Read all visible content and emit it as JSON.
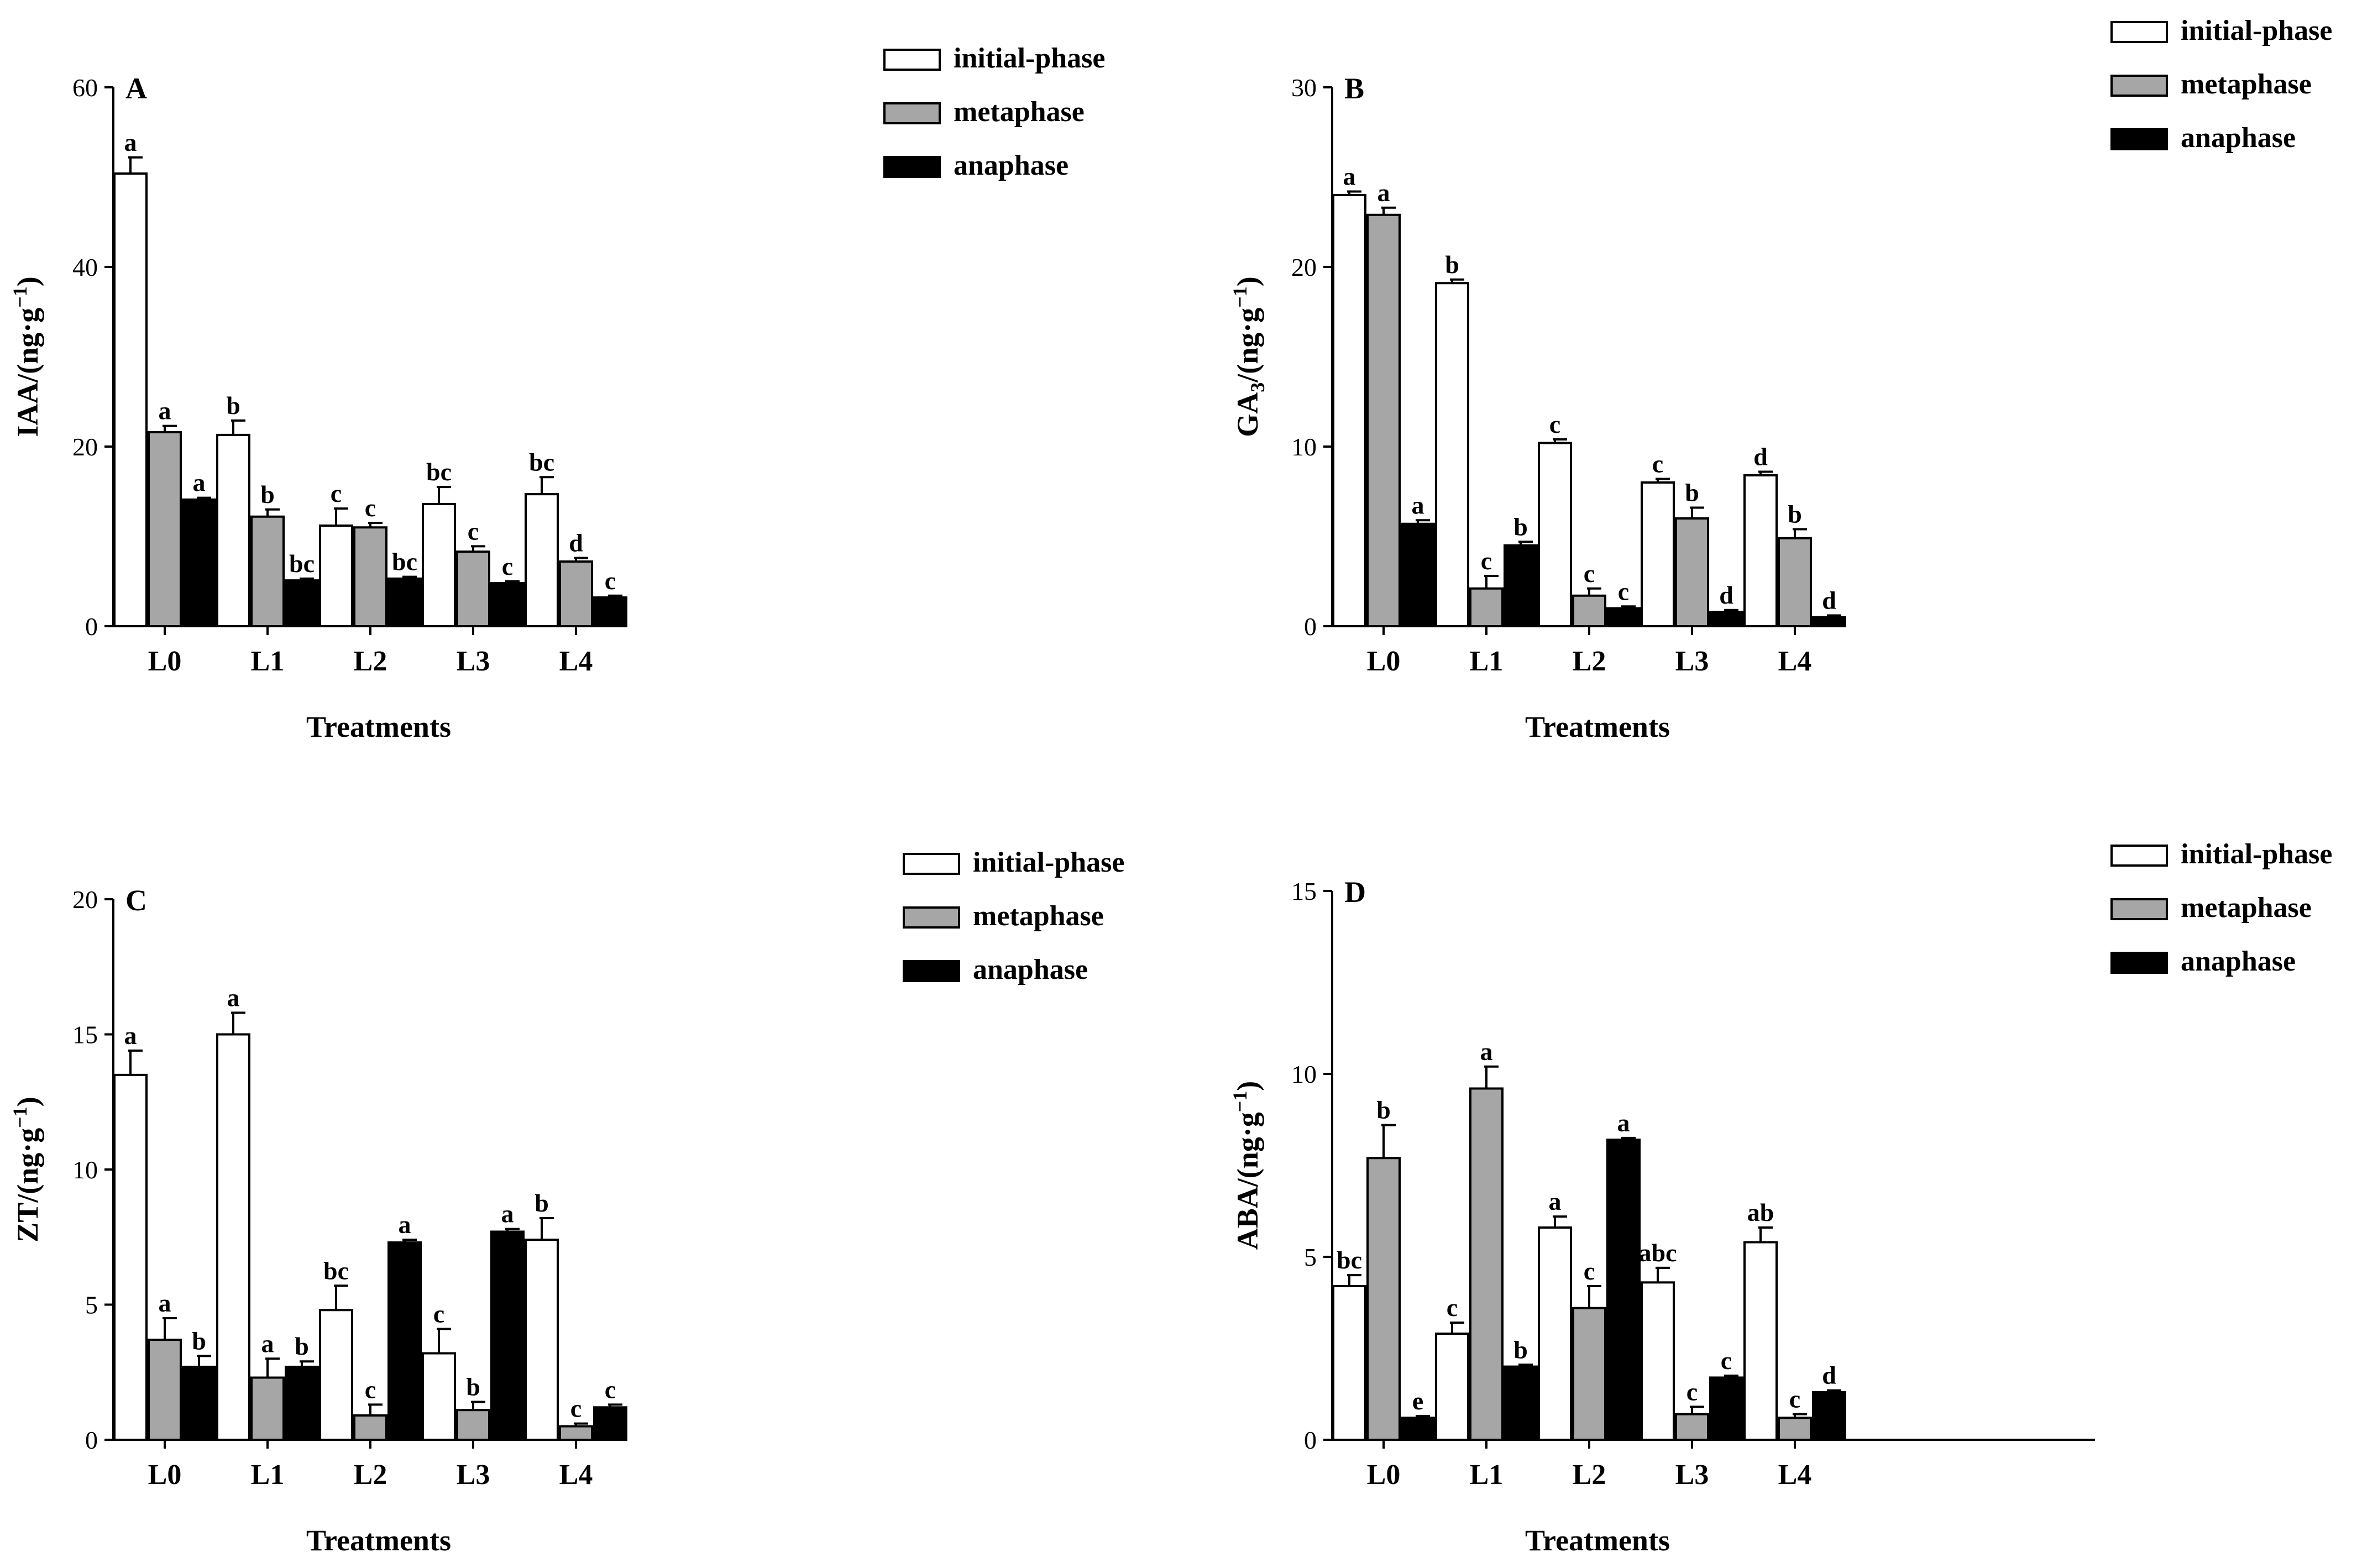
{
  "chart_data": [
    {
      "type": "bar",
      "panel": "A",
      "ylabel_main": "IAA/(ng·g",
      "ylabel_sup": "−1",
      "ylabel_sub": "",
      "ylabel_end": ")",
      "xlabel": "Treatments",
      "ylim": [
        0,
        60
      ],
      "yticks": [
        0,
        20,
        40,
        60
      ],
      "categories": [
        "L0",
        "L1",
        "L2",
        "L3",
        "L4"
      ],
      "series": [
        {
          "name": "initial-phase",
          "color": "#ffffff",
          "values": [
            50.4,
            21.3,
            11.2,
            13.6,
            14.7
          ],
          "errors": [
            1.8,
            1.6,
            1.9,
            1.9,
            1.9
          ],
          "letters": [
            "a",
            "b",
            "c",
            "bc",
            "bc"
          ]
        },
        {
          "name": "metaphase",
          "color": "#a6a6a6",
          "values": [
            21.6,
            12.2,
            11.0,
            8.3,
            7.2
          ],
          "errors": [
            0.7,
            0.8,
            0.5,
            0.6,
            0.4
          ],
          "letters": [
            "a",
            "b",
            "c",
            "c",
            "d"
          ]
        },
        {
          "name": "anaphase",
          "color": "#000000",
          "values": [
            14.1,
            5.1,
            5.3,
            4.8,
            3.2
          ],
          "errors": [
            0.2,
            0.2,
            0.2,
            0.2,
            0.2
          ],
          "letters": [
            "a",
            "bc",
            "bc",
            "c",
            "c"
          ]
        }
      ]
    },
    {
      "type": "bar",
      "panel": "B",
      "ylabel_main": "GA",
      "ylabel_sub": "3",
      "ylabel_mid": "/(ng·g",
      "ylabel_sup": "−1",
      "ylabel_end": ")",
      "xlabel": "Treatments",
      "ylim": [
        0,
        30
      ],
      "yticks": [
        0,
        10,
        20,
        30
      ],
      "categories": [
        "L0",
        "L1",
        "L2",
        "L3",
        "L4"
      ],
      "series": [
        {
          "name": "initial-phase",
          "color": "#ffffff",
          "values": [
            24.0,
            19.1,
            10.2,
            8.0,
            8.4
          ],
          "errors": [
            0.2,
            0.2,
            0.2,
            0.2,
            0.2
          ],
          "letters": [
            "a",
            "b",
            "c",
            "c",
            "d"
          ]
        },
        {
          "name": "metaphase",
          "color": "#a6a6a6",
          "values": [
            22.9,
            2.1,
            1.7,
            6.0,
            4.9
          ],
          "errors": [
            0.4,
            0.7,
            0.4,
            0.6,
            0.5
          ],
          "letters": [
            "a",
            "c",
            "c",
            "b",
            "b"
          ]
        },
        {
          "name": "anaphase",
          "color": "#000000",
          "values": [
            5.7,
            4.5,
            1.0,
            0.8,
            0.5
          ],
          "errors": [
            0.2,
            0.2,
            0.1,
            0.1,
            0.1
          ],
          "letters": [
            "a",
            "b",
            "c",
            "d",
            "d"
          ]
        }
      ]
    },
    {
      "type": "bar",
      "panel": "C",
      "ylabel_main": "ZT/(ng·g",
      "ylabel_sup": "−1",
      "ylabel_sub": "",
      "ylabel_end": ")",
      "xlabel": "Treatments",
      "ylim": [
        0,
        20
      ],
      "yticks": [
        0,
        5,
        10,
        15,
        20
      ],
      "categories": [
        "L0",
        "L1",
        "L2",
        "L3",
        "L4"
      ],
      "series": [
        {
          "name": "initial-phase",
          "color": "#ffffff",
          "values": [
            13.5,
            15.0,
            4.8,
            3.2,
            7.4
          ],
          "errors": [
            0.9,
            0.8,
            0.9,
            0.9,
            0.8
          ],
          "letters": [
            "a",
            "a",
            "bc",
            "c",
            "b"
          ]
        },
        {
          "name": "metaphase",
          "color": "#a6a6a6",
          "values": [
            3.7,
            2.3,
            0.9,
            1.1,
            0.5
          ],
          "errors": [
            0.8,
            0.7,
            0.4,
            0.3,
            0.1
          ],
          "letters": [
            "a",
            "a",
            "c",
            "b",
            "c"
          ]
        },
        {
          "name": "anaphase",
          "color": "#000000",
          "values": [
            2.7,
            2.7,
            7.3,
            7.7,
            1.2
          ],
          "errors": [
            0.4,
            0.2,
            0.1,
            0.1,
            0.1
          ],
          "letters": [
            "b",
            "b",
            "a",
            "a",
            "c"
          ]
        }
      ]
    },
    {
      "type": "bar",
      "panel": "D",
      "ylabel_main": "ABA/(ng·g",
      "ylabel_sup": "−1",
      "ylabel_sub": "",
      "ylabel_end": ")",
      "xlabel": "Treatments",
      "ylim": [
        0,
        15
      ],
      "yticks": [
        0,
        5,
        10,
        15
      ],
      "categories": [
        "L0",
        "L1",
        "L2",
        "L3",
        "L4"
      ],
      "series": [
        {
          "name": "initial-phase",
          "color": "#ffffff",
          "values": [
            4.2,
            2.9,
            5.8,
            4.3,
            5.4
          ],
          "errors": [
            0.3,
            0.3,
            0.3,
            0.4,
            0.4
          ],
          "letters": [
            "bc",
            "c",
            "a",
            "abc",
            "ab"
          ]
        },
        {
          "name": "metaphase",
          "color": "#a6a6a6",
          "values": [
            7.7,
            9.6,
            3.6,
            0.7,
            0.6
          ],
          "errors": [
            0.9,
            0.6,
            0.6,
            0.2,
            0.1
          ],
          "letters": [
            "b",
            "a",
            "c",
            "c",
            "c"
          ]
        },
        {
          "name": "anaphase",
          "color": "#000000",
          "values": [
            0.6,
            2.0,
            8.2,
            1.7,
            1.3
          ],
          "errors": [
            0.05,
            0.05,
            0.05,
            0.05,
            0.05
          ],
          "letters": [
            "e",
            "b",
            "a",
            "c",
            "d"
          ]
        }
      ]
    }
  ]
}
